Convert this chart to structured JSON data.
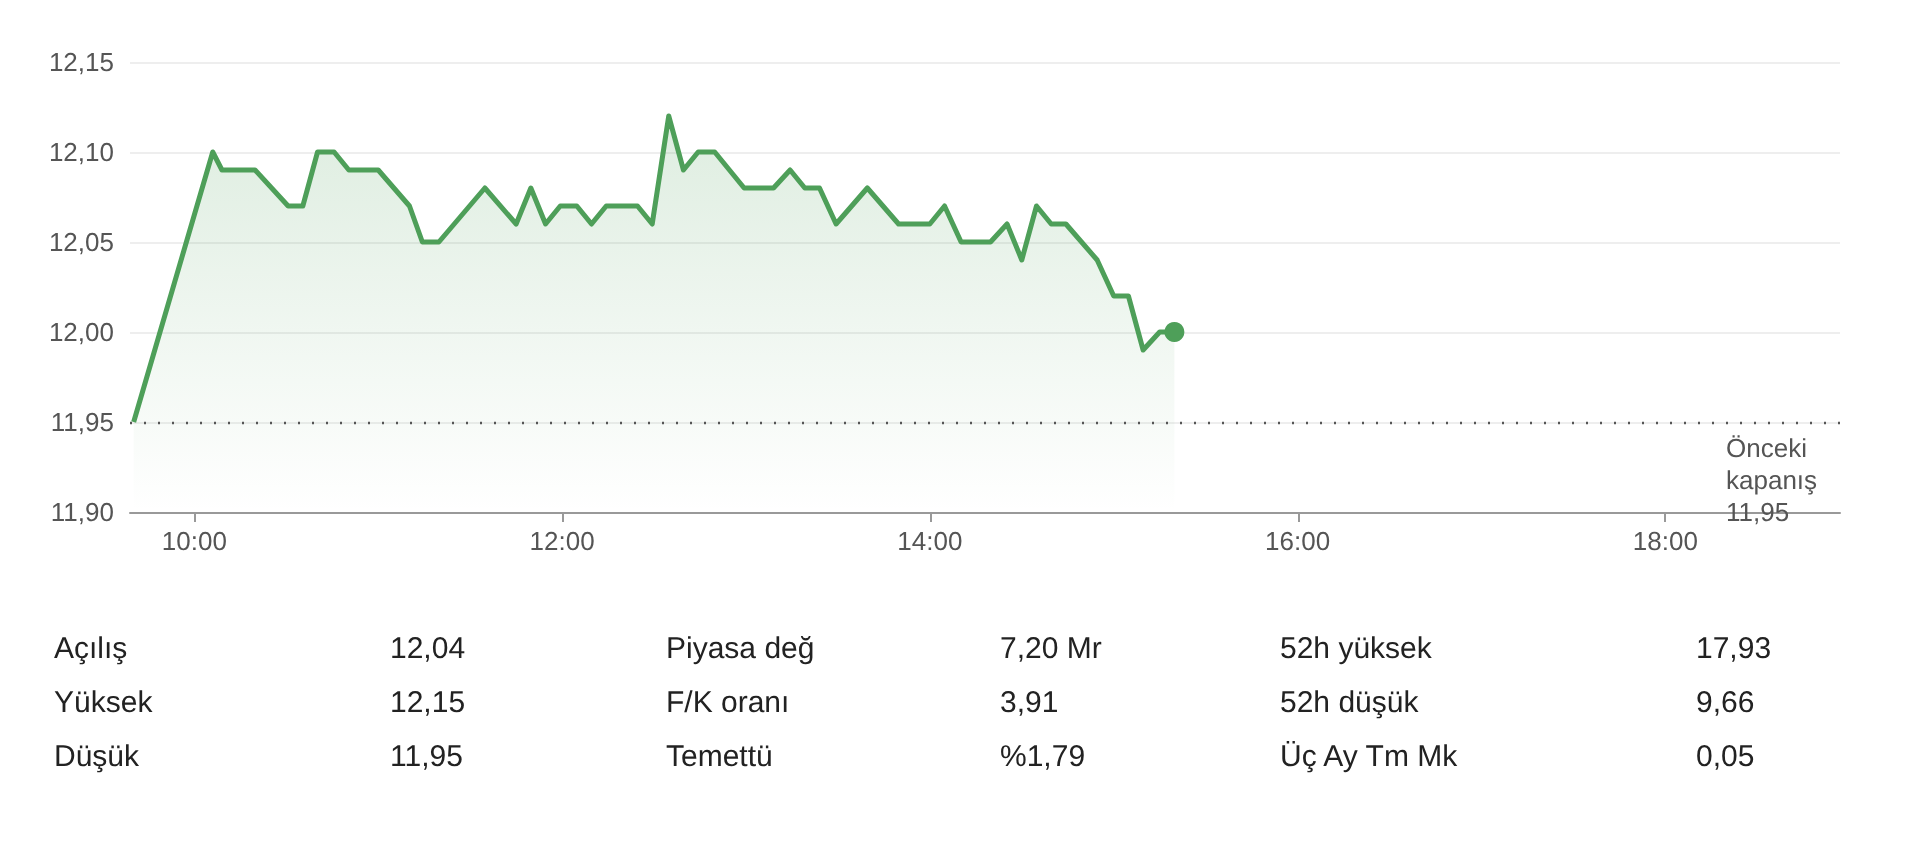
{
  "chart_data": {
    "type": "area",
    "x": [
      9.67,
      10.1,
      10.15,
      10.33,
      10.51,
      10.59,
      10.67,
      10.76,
      10.84,
      11.0,
      11.17,
      11.24,
      11.33,
      11.58,
      11.75,
      11.83,
      11.91,
      11.99,
      12.08,
      12.16,
      12.24,
      12.41,
      12.49,
      12.58,
      12.66,
      12.74,
      12.83,
      12.99,
      13.15,
      13.24,
      13.32,
      13.4,
      13.49,
      13.66,
      13.83,
      14.0,
      14.08,
      14.17,
      14.33,
      14.42,
      14.5,
      14.58,
      14.66,
      14.74,
      14.91,
      15.0,
      15.08,
      15.16,
      15.25,
      15.33
    ],
    "series": [
      {
        "color": "#4e9f59",
        "values": [
          11.95,
          12.1,
          12.09,
          12.09,
          12.07,
          12.07,
          12.1,
          12.1,
          12.09,
          12.09,
          12.07,
          12.05,
          12.05,
          12.08,
          12.06,
          12.08,
          12.06,
          12.07,
          12.07,
          12.06,
          12.07,
          12.07,
          12.06,
          12.12,
          12.09,
          12.1,
          12.1,
          12.08,
          12.08,
          12.09,
          12.08,
          12.08,
          12.06,
          12.08,
          12.06,
          12.06,
          12.07,
          12.05,
          12.05,
          12.06,
          12.04,
          12.07,
          12.06,
          12.06,
          12.04,
          12.02,
          12.02,
          11.99,
          12.0,
          12.0
        ]
      }
    ],
    "xlim": [
      9.65,
      18.95
    ],
    "xticks": [
      {
        "value": 10,
        "label": "10:00"
      },
      {
        "value": 12,
        "label": "12:00"
      },
      {
        "value": 14,
        "label": "14:00"
      },
      {
        "value": 16,
        "label": "16:00"
      },
      {
        "value": 18,
        "label": "18:00"
      }
    ],
    "ylim": [
      11.9,
      12.15
    ],
    "yticks": [
      {
        "value": 11.9,
        "label": "11,90"
      },
      {
        "value": 11.95,
        "label": "11,95"
      },
      {
        "value": 12.0,
        "label": "12,00"
      },
      {
        "value": 12.05,
        "label": "12,05"
      },
      {
        "value": 12.1,
        "label": "12,10"
      },
      {
        "value": 12.15,
        "label": "12,15"
      }
    ],
    "grid": "y",
    "ref_lines": [
      {
        "axis": "y",
        "value": 11.95,
        "label": "Önceki\nkapanış\n11,95",
        "line_style": "dotted",
        "color": "#555555"
      }
    ],
    "annotations": [
      "Açılış",
      "12,04",
      "Piyasa değ",
      "7,20 Mr",
      "52h yüksek",
      "17,93",
      "Yüksek",
      "12,15",
      "F/K oranı",
      "3,91",
      "52h düşük",
      "9,66",
      "Düşük",
      "11,95",
      "Temettü",
      "%1,79",
      "Üç Ay Tm Mk",
      "0,05"
    ]
  }
}
